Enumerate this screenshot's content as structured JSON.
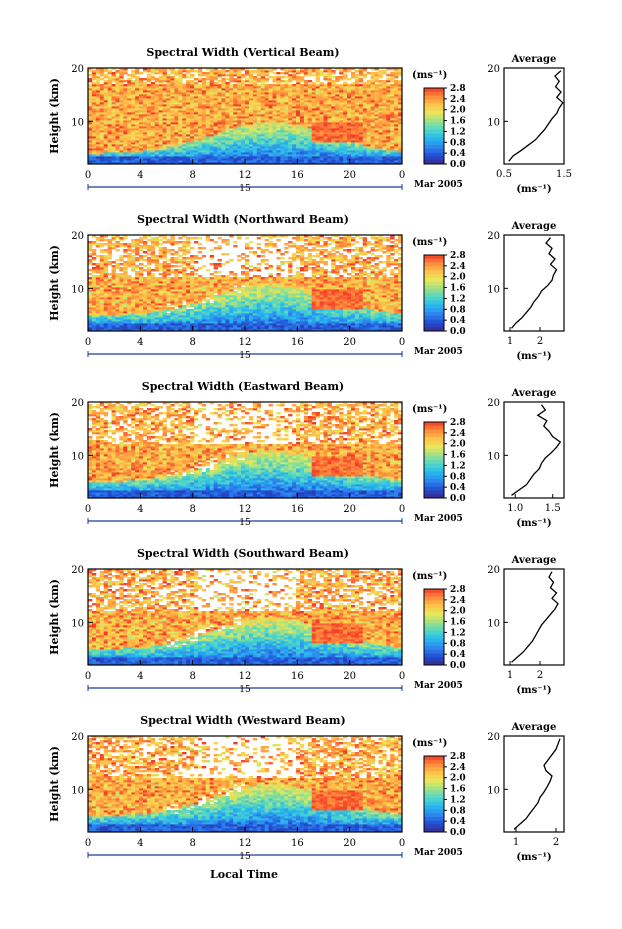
{
  "chart_data": {
    "type": "heatmap",
    "xlabel": "Local Time",
    "date_label": "Mar 2005",
    "day_label": "15",
    "x_ticks": [
      "0",
      "4",
      "8",
      "12",
      "16",
      "20",
      "0"
    ],
    "x_range": [
      0,
      24
    ],
    "ylabel": "Height (km)",
    "y_range": [
      2,
      20
    ],
    "y_ticks": [
      "20",
      "10"
    ],
    "colorbar_unit": "(ms⁻¹)",
    "colorbar_ticks": [
      "2.8",
      "2.4",
      "2.0",
      "1.6",
      "1.2",
      "0.8",
      "0.4",
      "0.0"
    ],
    "colorbar_range": [
      0.0,
      2.8
    ],
    "colormap": [
      "#3a2a8a",
      "#1f4fd6",
      "#2f86ee",
      "#27b7ee",
      "#4ed6c8",
      "#9be08a",
      "#e8e85a",
      "#ffc44a",
      "#ff8a3c",
      "#f23a28"
    ],
    "average_title": "Average",
    "average_xunit": "(ms⁻¹)",
    "panels": [
      {
        "title": "Spectral Width (Vertical Beam)",
        "avg_x_ticks": [
          "0.5",
          "1.5"
        ],
        "avg_x_range": [
          0.5,
          1.5
        ],
        "avg_profile": [
          [
            2.5,
            0.58
          ],
          [
            3.5,
            0.65
          ],
          [
            4.5,
            0.78
          ],
          [
            5.5,
            0.9
          ],
          [
            6.5,
            1.02
          ],
          [
            7.5,
            1.1
          ],
          [
            8.5,
            1.18
          ],
          [
            9.5,
            1.24
          ],
          [
            10.5,
            1.3
          ],
          [
            11.5,
            1.38
          ],
          [
            12.5,
            1.42
          ],
          [
            13.5,
            1.48
          ],
          [
            14.5,
            1.38
          ],
          [
            15.5,
            1.45
          ],
          [
            16.5,
            1.36
          ],
          [
            17.5,
            1.42
          ],
          [
            18.5,
            1.35
          ],
          [
            19.5,
            1.45
          ]
        ]
      },
      {
        "title": "Spectral Width (Northward Beam)",
        "avg_x_ticks": [
          "1",
          "2"
        ],
        "avg_x_range": [
          0.8,
          2.8
        ],
        "avg_profile": [
          [
            2.5,
            1.05
          ],
          [
            3.5,
            1.2
          ],
          [
            4.5,
            1.4
          ],
          [
            5.5,
            1.55
          ],
          [
            6.5,
            1.7
          ],
          [
            7.5,
            1.8
          ],
          [
            8.5,
            1.95
          ],
          [
            9.5,
            2.05
          ],
          [
            10.5,
            2.25
          ],
          [
            11.5,
            2.4
          ],
          [
            12.5,
            2.45
          ],
          [
            13.5,
            2.55
          ],
          [
            14.5,
            2.35
          ],
          [
            15.5,
            2.5
          ],
          [
            16.5,
            2.3
          ],
          [
            17.5,
            2.4
          ],
          [
            18.5,
            2.2
          ],
          [
            19.5,
            2.35
          ]
        ]
      },
      {
        "title": "Spectral Width (Eastward Beam)",
        "avg_x_ticks": [
          "1.0",
          "1.5"
        ],
        "avg_x_range": [
          0.85,
          1.65
        ],
        "avg_profile": [
          [
            2.5,
            0.95
          ],
          [
            3.5,
            1.05
          ],
          [
            4.5,
            1.15
          ],
          [
            5.5,
            1.2
          ],
          [
            6.5,
            1.25
          ],
          [
            7.5,
            1.32
          ],
          [
            8.5,
            1.35
          ],
          [
            9.5,
            1.4
          ],
          [
            10.5,
            1.48
          ],
          [
            11.5,
            1.55
          ],
          [
            12.5,
            1.6
          ],
          [
            13.5,
            1.5
          ],
          [
            14.5,
            1.45
          ],
          [
            15.5,
            1.38
          ],
          [
            16.5,
            1.42
          ],
          [
            17.5,
            1.3
          ],
          [
            18.5,
            1.4
          ],
          [
            19.5,
            1.35
          ]
        ]
      },
      {
        "title": "Spectral Width (Southward Beam)",
        "avg_x_ticks": [
          "1",
          "2"
        ],
        "avg_x_range": [
          0.8,
          2.8
        ],
        "avg_profile": [
          [
            2.5,
            1.05
          ],
          [
            3.5,
            1.25
          ],
          [
            4.5,
            1.45
          ],
          [
            5.5,
            1.6
          ],
          [
            6.5,
            1.75
          ],
          [
            7.5,
            1.85
          ],
          [
            8.5,
            1.95
          ],
          [
            9.5,
            2.05
          ],
          [
            10.5,
            2.2
          ],
          [
            11.5,
            2.35
          ],
          [
            12.5,
            2.5
          ],
          [
            13.5,
            2.6
          ],
          [
            14.5,
            2.4
          ],
          [
            15.5,
            2.55
          ],
          [
            16.5,
            2.35
          ],
          [
            17.5,
            2.45
          ],
          [
            18.5,
            2.3
          ],
          [
            19.5,
            2.4
          ]
        ]
      },
      {
        "title": "Spectral Width (Westward Beam)",
        "avg_x_ticks": [
          "1",
          "2"
        ],
        "avg_x_range": [
          0.7,
          2.2
        ],
        "avg_profile": [
          [
            2.5,
            0.95
          ],
          [
            3.5,
            1.1
          ],
          [
            4.5,
            1.25
          ],
          [
            5.5,
            1.35
          ],
          [
            6.5,
            1.45
          ],
          [
            7.5,
            1.55
          ],
          [
            8.5,
            1.6
          ],
          [
            9.5,
            1.7
          ],
          [
            10.5,
            1.78
          ],
          [
            11.5,
            1.85
          ],
          [
            12.5,
            1.9
          ],
          [
            13.5,
            1.75
          ],
          [
            14.5,
            1.7
          ],
          [
            15.5,
            1.8
          ],
          [
            16.5,
            1.9
          ],
          [
            17.5,
            2.0
          ],
          [
            18.5,
            2.05
          ],
          [
            19.5,
            2.1
          ]
        ]
      }
    ]
  }
}
